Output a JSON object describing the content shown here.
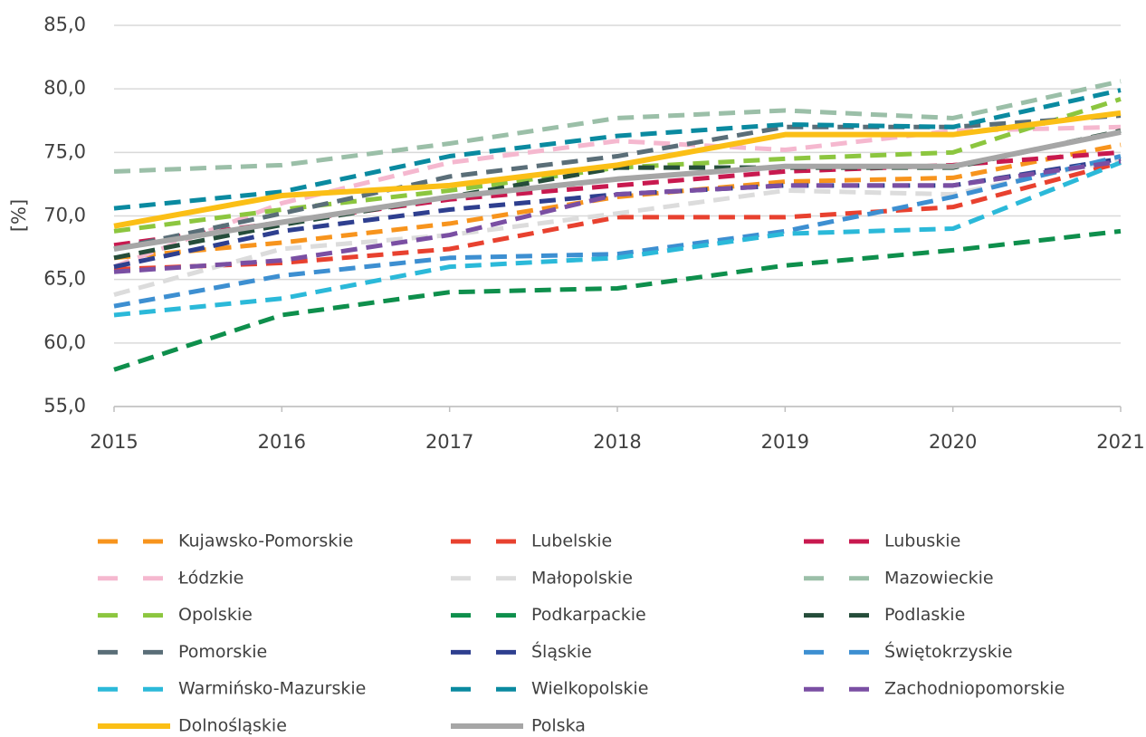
{
  "chart_data": {
    "type": "line",
    "ylabel": "[%]",
    "x": [
      2015,
      2016,
      2017,
      2018,
      2019,
      2020,
      2021
    ],
    "xlim": [
      2015,
      2021
    ],
    "xticks": [
      2015,
      2016,
      2017,
      2018,
      2019,
      2020,
      2021
    ],
    "ylim": [
      55,
      85
    ],
    "yticks": [
      {
        "value": 55,
        "label": "55,0"
      },
      {
        "value": 60,
        "label": "60,0"
      },
      {
        "value": 65,
        "label": "65,0"
      },
      {
        "value": 70,
        "label": "70,0"
      },
      {
        "value": 75,
        "label": "75,0"
      },
      {
        "value": 80,
        "label": "80,0"
      },
      {
        "value": 85,
        "label": "85,0"
      }
    ],
    "grid": true,
    "legend": "bottom",
    "series": [
      {
        "name": "Kujawsko-Pomorskie",
        "color": "#f7941d",
        "style": "dashed",
        "values": [
          66.7,
          67.9,
          69.4,
          71.5,
          72.7,
          73.0,
          75.6
        ]
      },
      {
        "name": "Lubelskie",
        "color": "#e8412f",
        "style": "dashed",
        "values": [
          65.8,
          66.3,
          67.4,
          69.9,
          69.9,
          70.7,
          74.2
        ]
      },
      {
        "name": "Lubuskie",
        "color": "#c8194f",
        "style": "dashed",
        "values": [
          67.7,
          69.5,
          71.3,
          72.4,
          73.5,
          74.0,
          75.0
        ]
      },
      {
        "name": "Łódzkie",
        "color": "#f5b8cf",
        "style": "dashed",
        "values": [
          66.0,
          71.0,
          74.2,
          75.9,
          75.2,
          76.7,
          77.0
        ]
      },
      {
        "name": "Małopolskie",
        "color": "#dcdcdc",
        "style": "dashed",
        "values": [
          63.8,
          67.4,
          68.5,
          70.2,
          72.0,
          71.7,
          74.5
        ]
      },
      {
        "name": "Mazowieckie",
        "color": "#9bbfa8",
        "style": "dashed",
        "values": [
          73.5,
          74.0,
          75.7,
          77.7,
          78.3,
          77.7,
          80.6
        ]
      },
      {
        "name": "Opolskie",
        "color": "#8cc63f",
        "style": "dashed",
        "values": [
          68.8,
          70.5,
          72.0,
          73.8,
          74.5,
          75.0,
          79.2
        ]
      },
      {
        "name": "Podkarpackie",
        "color": "#0e8f4c",
        "style": "dashed",
        "values": [
          57.9,
          62.2,
          64.0,
          64.3,
          66.1,
          67.3,
          68.8
        ]
      },
      {
        "name": "Podlaskie",
        "color": "#254d3a",
        "style": "dashed",
        "values": [
          66.7,
          69.3,
          71.5,
          73.8,
          73.8,
          73.8,
          76.7
        ]
      },
      {
        "name": "Pomorskie",
        "color": "#5a6e78",
        "style": "dashed",
        "values": [
          67.4,
          70.2,
          73.1,
          74.7,
          77.0,
          77.0,
          77.9
        ]
      },
      {
        "name": "Śląskie",
        "color": "#2e3f8f",
        "style": "dashed",
        "values": [
          66.0,
          68.8,
          70.5,
          71.7,
          72.4,
          72.4,
          74.5
        ]
      },
      {
        "name": "Świętokrzyskie",
        "color": "#3d8fd1",
        "style": "dashed",
        "values": [
          62.9,
          65.3,
          66.7,
          67.0,
          68.8,
          71.5,
          74.7
        ]
      },
      {
        "name": "Warmińsko-Mazurskie",
        "color": "#2bb9d9",
        "style": "dashed",
        "values": [
          62.2,
          63.5,
          66.0,
          66.7,
          68.6,
          69.0,
          74.2
        ]
      },
      {
        "name": "Wielkopolskie",
        "color": "#0a8aa0",
        "style": "dashed",
        "values": [
          70.6,
          71.9,
          74.7,
          76.3,
          77.2,
          77.0,
          79.9
        ]
      },
      {
        "name": "Zachodniopomorskie",
        "color": "#7a4fa3",
        "style": "dashed",
        "values": [
          65.6,
          66.5,
          68.5,
          71.7,
          72.4,
          72.4,
          74.3
        ]
      },
      {
        "name": "Dolnośląskie",
        "color": "#fbbf16",
        "style": "solid",
        "values": [
          69.2,
          71.6,
          72.4,
          74.0,
          76.4,
          76.4,
          78.1
        ]
      },
      {
        "name": "Polska",
        "color": "#a6a6a6",
        "style": "solid",
        "values": [
          67.4,
          69.5,
          71.5,
          72.9,
          73.9,
          73.9,
          76.6
        ]
      }
    ]
  }
}
